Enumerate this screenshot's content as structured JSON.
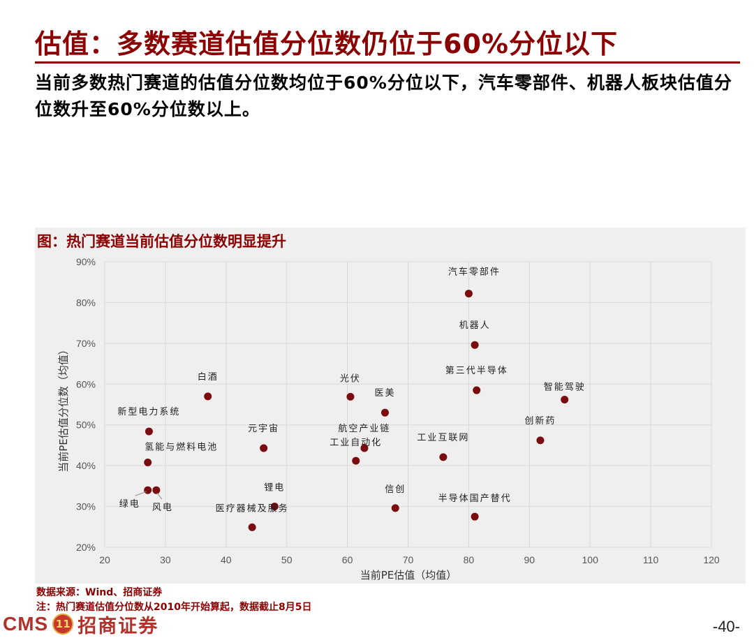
{
  "slide": {
    "title": "估值：多数赛道估值分位数仍位于60%分位以下",
    "subtitle": "当前多数热门赛道的估值分位数均位于60%分位以下，汽车零部件、机器人板块估值分位数升至60%分位数以上。",
    "figure_title": "图：热门赛道当前估值分位数明显提升",
    "source": "数据来源：Wind、招商证券",
    "note": "注：热门赛道估值分位数从2010年开始算起，数据截止8月5日",
    "brand_cms": "CMS",
    "brand_badge": "11",
    "brand_name": "招商证券",
    "page_number": "-40-"
  },
  "colors": {
    "accent": "#8b0000",
    "marker": "#7a0b0f",
    "grid": "#d9d9d9",
    "panel": "#efefef"
  },
  "chart_data": {
    "type": "scatter",
    "xlabel": "当前PE估值（均值）",
    "ylabel": "当前PE估值分位数（均值）",
    "xlim": [
      20,
      120
    ],
    "ylim": [
      20,
      90
    ],
    "xticks": [
      "20",
      "30",
      "40",
      "50",
      "60",
      "70",
      "80",
      "90",
      "100",
      "110",
      "120"
    ],
    "yticks": [
      "20%",
      "30%",
      "40%",
      "50%",
      "60%",
      "70%",
      "80%",
      "90%"
    ],
    "grid": true,
    "points": [
      {
        "label": "汽车零部件",
        "x": 80.0,
        "y": 82.2
      },
      {
        "label": "机器人",
        "x": 81.0,
        "y": 69.6
      },
      {
        "label": "第三代半导体",
        "x": 81.3,
        "y": 58.5
      },
      {
        "label": "智能驾驶",
        "x": 95.8,
        "y": 56.2
      },
      {
        "label": "白酒",
        "x": 37.0,
        "y": 57.0
      },
      {
        "label": "光伏",
        "x": 60.5,
        "y": 56.9
      },
      {
        "label": "医美",
        "x": 66.2,
        "y": 53.0
      },
      {
        "label": "新型电力系统",
        "x": 27.3,
        "y": 48.4
      },
      {
        "label": "创新药",
        "x": 91.8,
        "y": 46.2
      },
      {
        "label": "元宇宙",
        "x": 46.2,
        "y": 44.3
      },
      {
        "label": "航空产业链",
        "x": 62.8,
        "y": 44.3
      },
      {
        "label": "工业互联网",
        "x": 75.8,
        "y": 42.1
      },
      {
        "label": "工业自动化",
        "x": 61.4,
        "y": 41.2
      },
      {
        "label": "氢能与燃料电池",
        "x": 27.1,
        "y": 40.8
      },
      {
        "label": "绿电",
        "x": 27.1,
        "y": 34.0
      },
      {
        "label": "风电",
        "x": 28.5,
        "y": 34.0
      },
      {
        "label": "锂电",
        "x": 48.0,
        "y": 30.0
      },
      {
        "label": "信创",
        "x": 67.9,
        "y": 29.6
      },
      {
        "label": "半导体国产替代",
        "x": 81.0,
        "y": 27.5
      },
      {
        "label": "医疗器械及服务",
        "x": 44.3,
        "y": 24.9
      }
    ]
  }
}
